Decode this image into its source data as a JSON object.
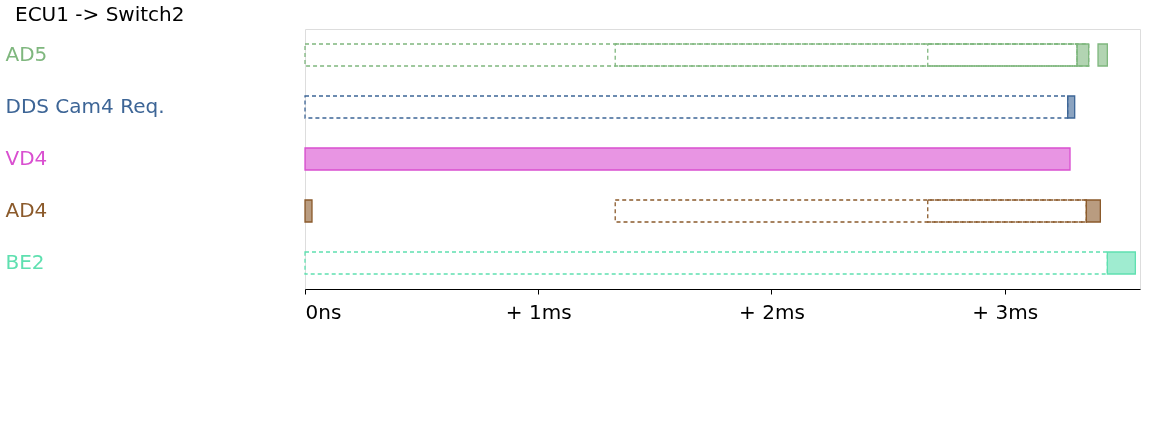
{
  "chart_data": {
    "type": "bar",
    "orientation": "horizontal",
    "title": "ECU1 -> Switch2",
    "categories": [
      "AD5",
      "DDS Cam4 Req.",
      "VD4",
      "AD4",
      "BE2"
    ],
    "xlim": [
      0,
      3.58
    ],
    "xticks": [
      {
        "value": 0,
        "label": "0ns"
      },
      {
        "value": 1,
        "label": "+ 1ms"
      },
      {
        "value": 2,
        "label": "+ 2ms"
      },
      {
        "value": 3,
        "label": "+ 3ms"
      }
    ],
    "grid": false,
    "series": [
      {
        "line_style": "dashed",
        "colors": [
          "#7fb77e",
          "#3d6596",
          "#d94fd0",
          "#8b5a2b",
          "#5fe0b0"
        ],
        "base": [
          0,
          0,
          null,
          1.33,
          0
        ],
        "values": [
          3.31,
          3.27,
          null,
          2.02,
          3.44
        ]
      },
      {
        "line_style": "dashed",
        "colors": [
          "#7fb77e",
          "#3d6596",
          "#d94fd0",
          "#8b5a2b",
          "#5fe0b0"
        ],
        "base": [
          1.33,
          null,
          null,
          2.67,
          null
        ],
        "values": [
          1.98,
          null,
          null,
          0.68,
          null
        ]
      },
      {
        "line_style": "dashed",
        "colors": [
          "#7fb77e",
          "#3d6596",
          "#d94fd0",
          "#8b5a2b",
          "#5fe0b0"
        ],
        "base": [
          2.67,
          null,
          null,
          null,
          null
        ],
        "values": [
          0.69,
          null,
          null,
          null,
          null
        ]
      },
      {
        "line_style": "solid",
        "colors": [
          "#7fb77e",
          "#3d6596",
          "#d94fd0",
          "#8b5a2b",
          "#5fe0b0"
        ],
        "base": [
          3.31,
          3.27,
          0,
          0,
          3.44
        ],
        "values": [
          0.05,
          0.03,
          3.28,
          0.03,
          0.12
        ]
      },
      {
        "line_style": "solid",
        "colors": [
          "#7fb77e",
          "#3d6596",
          "#d94fd0",
          "#8b5a2b",
          "#5fe0b0"
        ],
        "base": [
          3.4,
          null,
          null,
          3.35,
          null
        ],
        "values": [
          0.04,
          null,
          null,
          0.06,
          null
        ]
      }
    ]
  }
}
